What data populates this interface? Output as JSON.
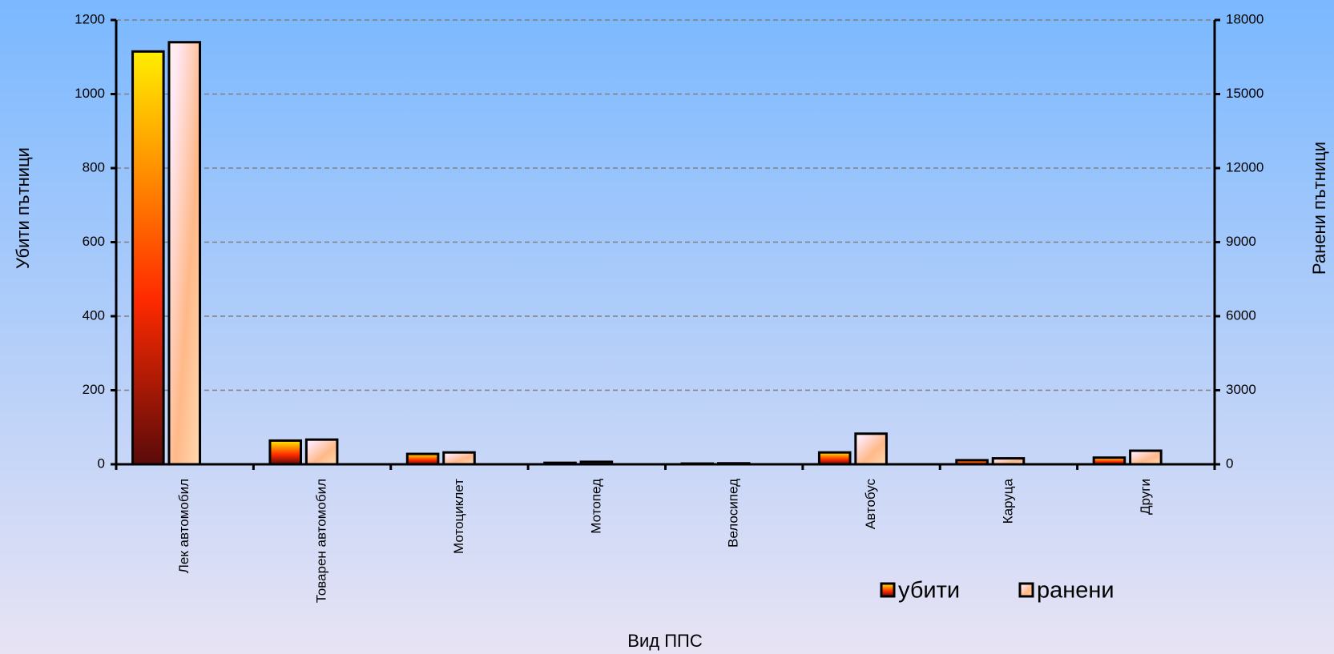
{
  "chart_data": {
    "type": "bar",
    "x_label": "Вид ППС",
    "y_label": "Убити пътници",
    "y2_label": "Ранени пътници",
    "categories": [
      "Лек автомобил",
      "Товарен автомобил",
      "Мотоциклет",
      "Мотопед",
      "Велосипед",
      "Автобус",
      "Каруца",
      "Други"
    ],
    "series": [
      {
        "name": "убити",
        "color": "#ff2a00",
        "values": [
          1115,
          64,
          28,
          4,
          2,
          32,
          11,
          18
        ]
      },
      {
        "name": "ранени",
        "color": "#ffb888",
        "axis": "y2",
        "values": [
          17100,
          1000,
          480,
          100,
          40,
          1240,
          240,
          550
        ]
      }
    ],
    "ylim": [
      0,
      1200
    ],
    "yticks": [
      0,
      200,
      400,
      600,
      800,
      1000,
      1200
    ],
    "y2lim": [
      0,
      18000
    ],
    "y2ticks": [
      0,
      3000,
      6000,
      9000,
      12000,
      15000,
      18000
    ],
    "grid": true,
    "legend": "bottom-right"
  }
}
